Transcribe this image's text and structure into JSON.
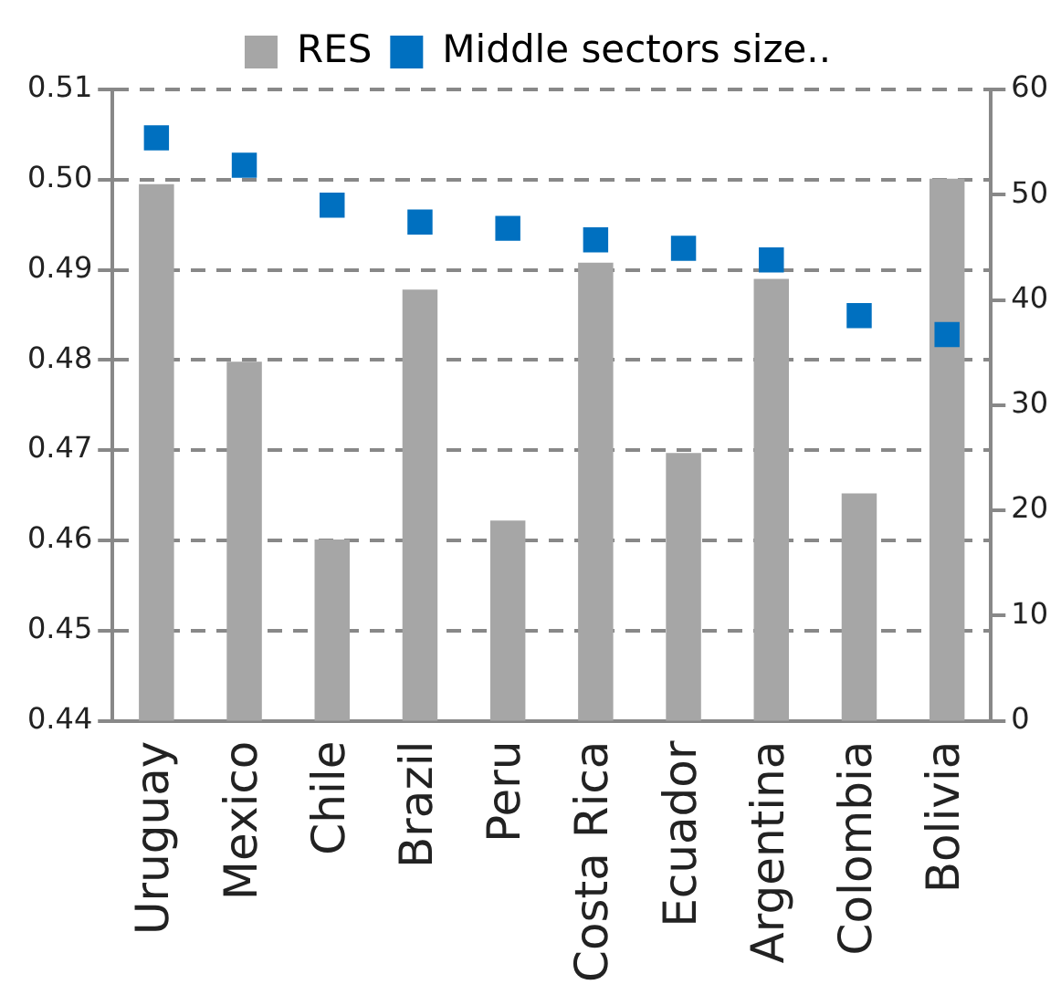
{
  "chart_data": {
    "type": "bar",
    "categories": [
      "Uruguay",
      "Mexico",
      "Chile",
      "Brazil",
      "Peru",
      "Costa Rica",
      "Ecuador",
      "Argentina",
      "Colombia",
      "Bolivia"
    ],
    "series": [
      {
        "name": "RES",
        "color": "#a6a6a6",
        "values": [
          0.4995,
          0.4798,
          0.4601,
          0.4878,
          0.4622,
          0.4908,
          0.4697,
          0.489,
          0.4652,
          0.5001
        ]
      },
      {
        "name": "Middle sectors size..",
        "type": "scatter",
        "axis": "y2",
        "color": "#0070c0",
        "values": [
          55.4,
          52.8,
          49.0,
          47.4,
          46.8,
          45.7,
          44.9,
          43.8,
          38.5,
          36.7
        ]
      }
    ],
    "ylim": [
      0.44,
      0.51
    ],
    "yticks": [
      0.44,
      0.45,
      0.46,
      0.47,
      0.48,
      0.49,
      {
        "value": 0.5,
        "label": "0.50"
      },
      0.51
    ],
    "y2lim": [
      0,
      60
    ],
    "y2ticks": [
      0,
      10,
      20,
      30,
      40,
      50,
      60
    ],
    "grid": "y",
    "legend": "top",
    "marker": "square"
  }
}
